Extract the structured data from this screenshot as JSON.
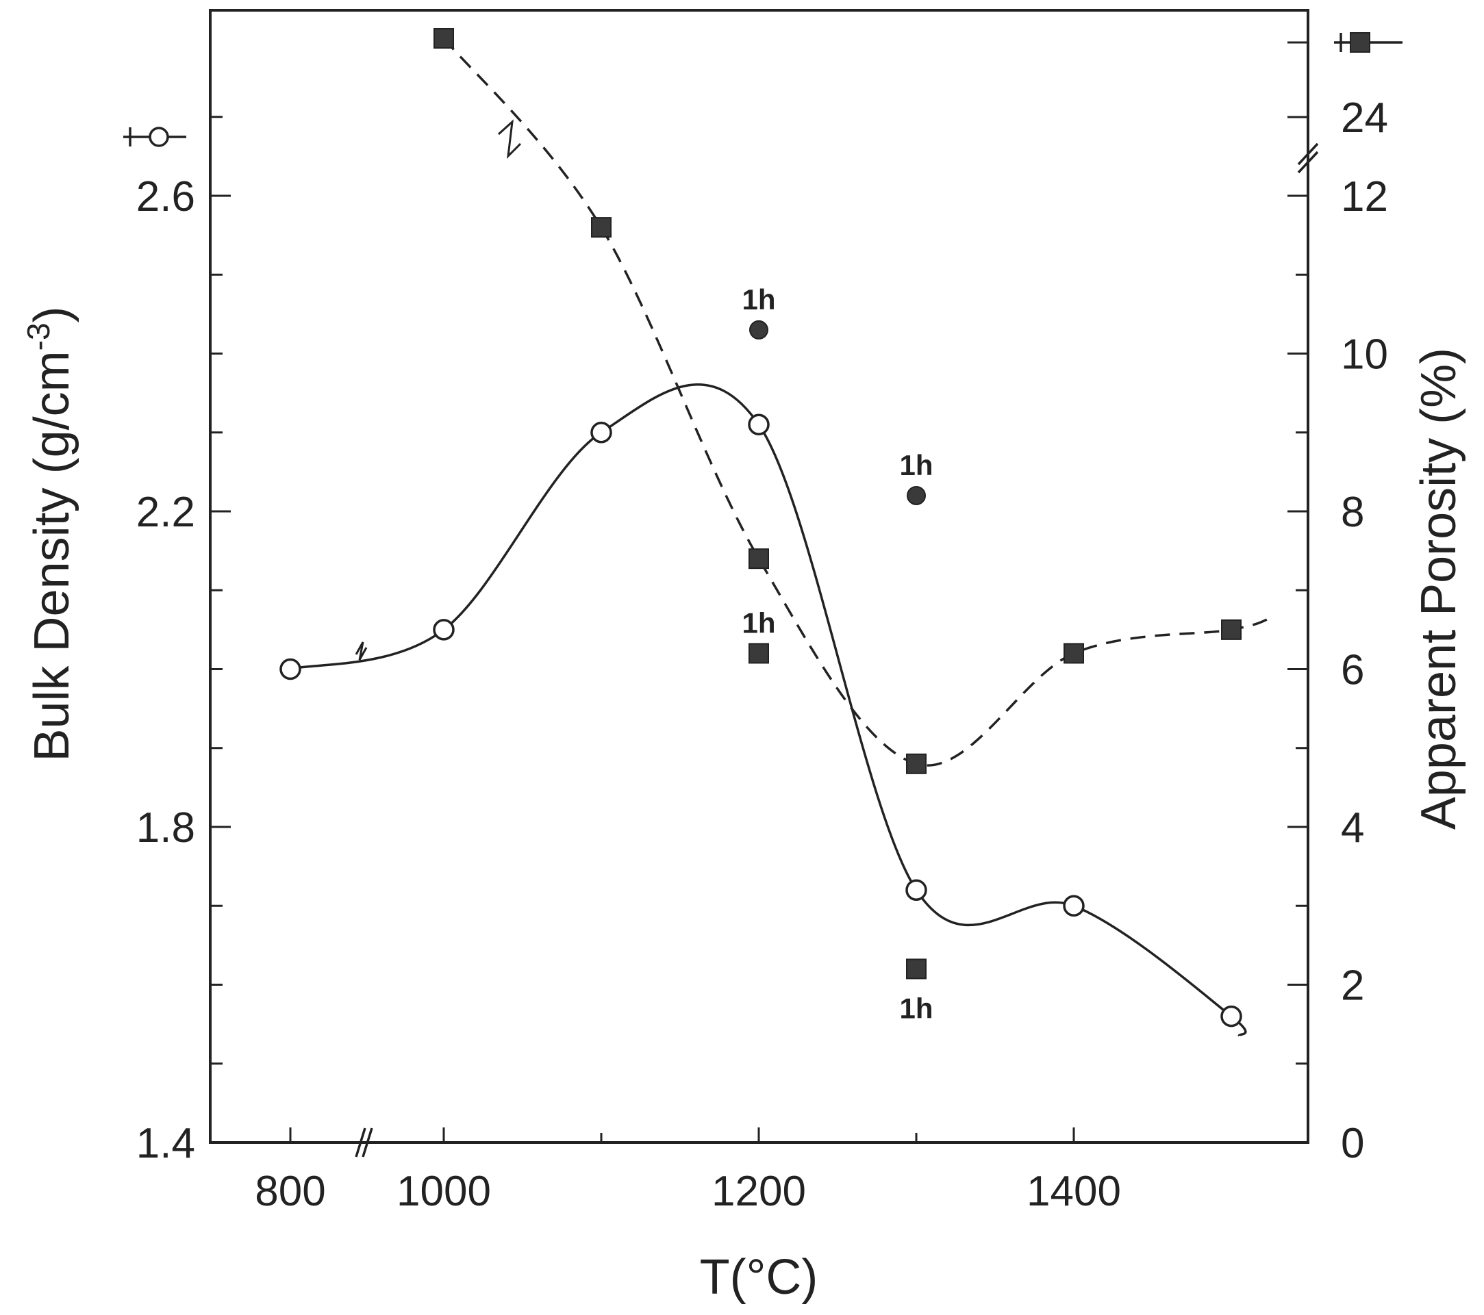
{
  "chart_data": {
    "type": "line",
    "xlabel": "T(°C)",
    "ylabel_left": "Bulk Density (g/cm",
    "ylabel_left_sup": "-3",
    "ylabel_left_tail": ")",
    "ylabel_right": "Apparent Porosity (%)",
    "x_ticks": [
      "800",
      "1000",
      "1200",
      "1400"
    ],
    "y_left_ticks": [
      "1.4",
      "1.8",
      "2.2",
      "2.6"
    ],
    "y_right_ticks": [
      "0",
      "2",
      "4",
      "6",
      "8",
      "10",
      "12",
      "24"
    ],
    "xlim": [
      750,
      1450
    ],
    "ylim_left": [
      1.4,
      2.84
    ],
    "ylim_right": [
      0,
      14.4
    ],
    "right_axis_break": "12 / 24",
    "series": [
      {
        "axis": "left",
        "marker": "open-circle",
        "line": "solid",
        "x": [
          800,
          1000,
          1100,
          1200,
          1300,
          1400,
          1500
        ],
        "y": [
          2.0,
          2.05,
          2.3,
          2.31,
          1.72,
          1.7,
          1.56
        ]
      },
      {
        "axis": "right",
        "marker": "filled-square",
        "line": "dashed",
        "x": [
          1000,
          1100,
          1200,
          1300,
          1400,
          1500
        ],
        "y": [
          25,
          11.6,
          7.4,
          4.8,
          6.2,
          6.5
        ],
        "note": "first value plotted above axis break (24 scale)"
      }
    ],
    "annotations": [
      {
        "label": "1h",
        "marker": "filled-circle",
        "axis": "left",
        "x": 1200,
        "y": 2.43
      },
      {
        "label": "1h",
        "marker": "filled-circle",
        "axis": "left",
        "x": 1300,
        "y": 2.22
      },
      {
        "label": "1h",
        "marker": "filled-square",
        "axis": "right",
        "x": 1200,
        "y": 6.2
      },
      {
        "label": "1h",
        "marker": "filled-square",
        "axis": "right",
        "x": 1300,
        "y": 2.2
      }
    ],
    "grid": false
  }
}
